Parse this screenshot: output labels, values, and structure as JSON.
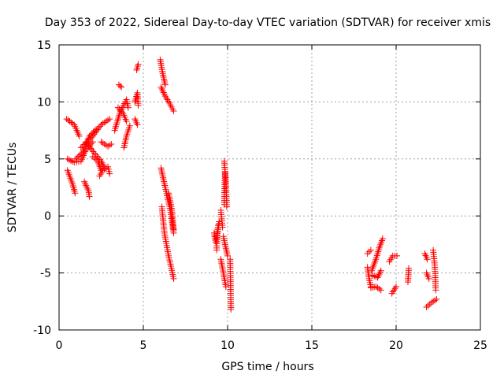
{
  "chart_data": {
    "type": "scatter",
    "title": "Day 353 of 2022, Sidereal Day-to-day VTEC variation (SDTVAR) for receiver xmis",
    "xlabel": "GPS time / hours",
    "ylabel": "SDTVAR / TECUs",
    "xlim": [
      0,
      25
    ],
    "ylim": [
      -10,
      15
    ],
    "xticks": [
      0,
      5,
      10,
      15,
      20,
      25
    ],
    "yticks": [
      -10,
      -5,
      0,
      5,
      10,
      15
    ],
    "grid": true,
    "marker": "+",
    "color": "#ff0000",
    "tracks": [
      [
        [
          0.45,
          8.5
        ],
        [
          0.9,
          8.0
        ],
        [
          1.2,
          7.0
        ]
      ],
      [
        [
          0.5,
          4.0
        ],
        [
          0.8,
          2.8
        ],
        [
          0.95,
          2.0
        ]
      ],
      [
        [
          0.5,
          5.0
        ],
        [
          0.9,
          4.7
        ],
        [
          1.3,
          4.8
        ],
        [
          1.6,
          5.8
        ],
        [
          2.0,
          6.5
        ]
      ],
      [
        [
          1.0,
          5.0
        ],
        [
          1.4,
          5.6
        ],
        [
          1.8,
          7.0
        ],
        [
          2.2,
          7.6
        ]
      ],
      [
        [
          1.3,
          6.0
        ],
        [
          1.6,
          6.4
        ],
        [
          2.0,
          7.0
        ],
        [
          2.5,
          8.0
        ],
        [
          3.0,
          8.5
        ]
      ],
      [
        [
          1.5,
          3.0
        ],
        [
          1.75,
          2.2
        ],
        [
          1.8,
          1.7
        ]
      ],
      [
        [
          1.6,
          6.5
        ],
        [
          2.1,
          5.5
        ],
        [
          2.5,
          4.8
        ],
        [
          2.7,
          4.2
        ]
      ],
      [
        [
          2.0,
          5.2
        ],
        [
          2.3,
          4.8
        ],
        [
          2.5,
          4.0
        ]
      ],
      [
        [
          2.4,
          3.5
        ],
        [
          2.6,
          4.0
        ],
        [
          2.9,
          4.3
        ],
        [
          3.0,
          3.7
        ]
      ],
      [
        [
          2.5,
          6.5
        ],
        [
          2.9,
          6.1
        ],
        [
          3.1,
          6.3
        ]
      ],
      [
        [
          3.3,
          7.5
        ],
        [
          3.6,
          9.0
        ],
        [
          4.0,
          10.2
        ],
        [
          4.1,
          9.5
        ]
      ],
      [
        [
          3.5,
          9.5
        ],
        [
          3.8,
          9.0
        ],
        [
          4.0,
          8.3
        ]
      ],
      [
        [
          3.7,
          11.3
        ],
        [
          3.55,
          11.5
        ]
      ],
      [
        [
          3.85,
          6.0
        ],
        [
          4.0,
          7.0
        ],
        [
          4.2,
          7.9
        ]
      ],
      [
        [
          4.5,
          10.0
        ],
        [
          4.65,
          10.8
        ],
        [
          4.7,
          9.7
        ]
      ],
      [
        [
          4.5,
          8.5
        ],
        [
          4.65,
          8.0
        ]
      ],
      [
        [
          4.6,
          12.8
        ],
        [
          4.7,
          13.3
        ]
      ],
      [
        [
          6.0,
          13.7
        ],
        [
          6.15,
          12.5
        ],
        [
          6.3,
          11.5
        ]
      ],
      [
        [
          6.05,
          11.3
        ],
        [
          6.3,
          10.5
        ],
        [
          6.55,
          9.9
        ],
        [
          6.8,
          9.2
        ]
      ],
      [
        [
          6.05,
          4.2
        ],
        [
          6.3,
          2.5
        ],
        [
          6.6,
          0.5
        ],
        [
          6.8,
          -1.5
        ]
      ],
      [
        [
          6.1,
          0.8
        ],
        [
          6.25,
          -1.5
        ],
        [
          6.5,
          -3.5
        ],
        [
          6.8,
          -5.5
        ]
      ],
      [
        [
          6.5,
          2.0
        ],
        [
          6.7,
          0.5
        ],
        [
          6.8,
          -1.2
        ]
      ],
      [
        [
          9.2,
          -1.5
        ],
        [
          9.3,
          -2.3
        ],
        [
          9.45,
          -0.8
        ]
      ],
      [
        [
          9.5,
          -0.5
        ],
        [
          9.4,
          -1.5
        ],
        [
          9.35,
          -3.0
        ]
      ],
      [
        [
          9.6,
          0.5
        ],
        [
          9.7,
          -1.0
        ]
      ],
      [
        [
          9.8,
          4.8
        ],
        [
          9.9,
          3.0
        ],
        [
          9.95,
          0.8
        ]
      ],
      [
        [
          9.85,
          3.8
        ],
        [
          9.8,
          1.0
        ]
      ],
      [
        [
          9.75,
          -1.8
        ],
        [
          9.85,
          -2.5
        ],
        [
          10.0,
          -3.5
        ]
      ],
      [
        [
          9.6,
          -3.8
        ],
        [
          9.75,
          -5.0
        ],
        [
          9.9,
          -6.2
        ]
      ],
      [
        [
          10.15,
          -3.8
        ],
        [
          10.2,
          -8.2
        ]
      ],
      [
        [
          18.3,
          -3.3
        ],
        [
          18.5,
          -3.0
        ]
      ],
      [
        [
          18.3,
          -4.5
        ],
        [
          18.4,
          -5.5
        ],
        [
          18.5,
          -6.2
        ]
      ],
      [
        [
          18.5,
          -6.3
        ],
        [
          18.8,
          -6.2
        ],
        [
          19.1,
          -6.5
        ]
      ],
      [
        [
          18.55,
          -4.8
        ],
        [
          18.8,
          -3.8
        ],
        [
          19.0,
          -2.8
        ],
        [
          19.2,
          -2.0
        ]
      ],
      [
        [
          18.6,
          -5.2
        ],
        [
          18.9,
          -5.4
        ],
        [
          19.1,
          -4.8
        ]
      ],
      [
        [
          19.6,
          -4.0
        ],
        [
          19.8,
          -3.5
        ],
        [
          20.05,
          -3.5
        ]
      ],
      [
        [
          19.75,
          -6.8
        ],
        [
          20.0,
          -6.2
        ]
      ],
      [
        [
          20.75,
          -4.6
        ],
        [
          20.7,
          -5.8
        ]
      ],
      [
        [
          21.7,
          -3.3
        ],
        [
          21.85,
          -3.8
        ]
      ],
      [
        [
          21.8,
          -5.0
        ],
        [
          21.95,
          -5.5
        ]
      ],
      [
        [
          21.8,
          -8.0
        ],
        [
          22.1,
          -7.6
        ],
        [
          22.4,
          -7.3
        ]
      ],
      [
        [
          22.2,
          -3.0
        ],
        [
          22.3,
          -4.5
        ],
        [
          22.35,
          -6.5
        ]
      ]
    ]
  }
}
